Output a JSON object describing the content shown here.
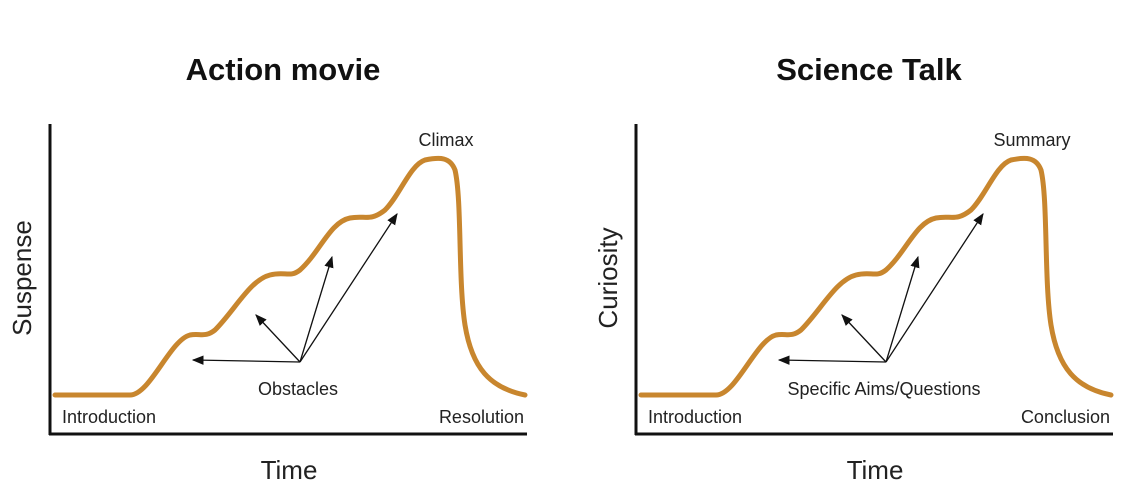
{
  "colors": {
    "curve": "#c8862e",
    "axis": "#111111",
    "arrow": "#111111"
  },
  "panels": [
    {
      "title": "Action movie",
      "ylabel": "Suspense",
      "xlabel": "Time",
      "labels": {
        "start": "Introduction",
        "middle": "Obstacles",
        "peak": "Climax",
        "end": "Resolution"
      }
    },
    {
      "title": "Science Talk",
      "ylabel": "Curiosity",
      "xlabel": "Time",
      "labels": {
        "start": "Introduction",
        "middle": "Specific Aims/Questions",
        "peak": "Summary",
        "end": "Conclusion"
      }
    }
  ]
}
